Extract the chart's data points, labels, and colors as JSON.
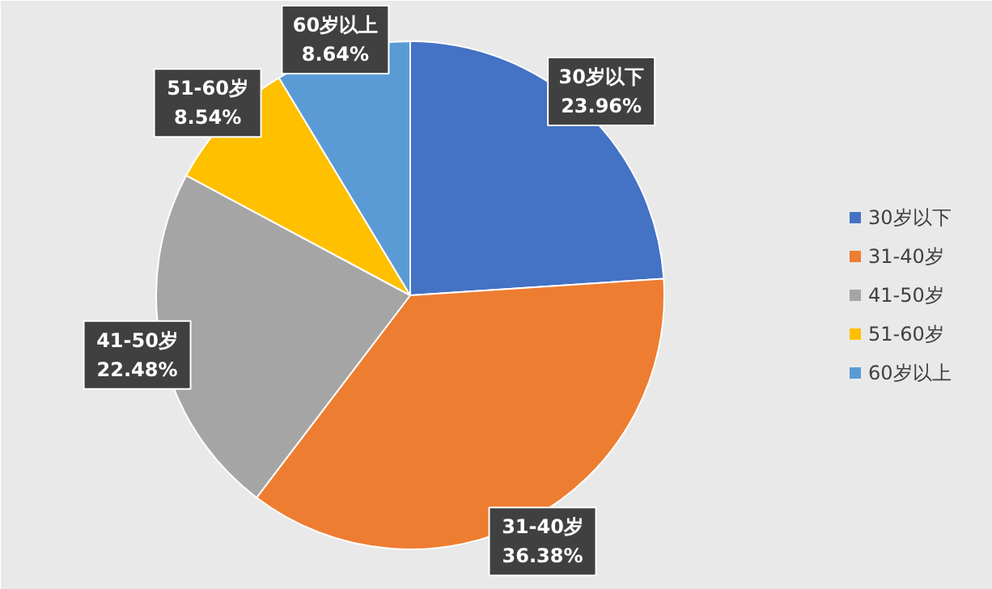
{
  "chart_data": {
    "type": "pie",
    "categories": [
      "30岁以下",
      "31-40岁",
      "41-50岁",
      "51-60岁",
      "60岁以上"
    ],
    "values": [
      23.96,
      36.38,
      22.48,
      8.54,
      8.64
    ],
    "value_labels": [
      "23.96%",
      "36.38%",
      "22.48%",
      "8.54%",
      "8.64%"
    ],
    "colors": [
      "#4472c4",
      "#ed7d31",
      "#a5a5a5",
      "#ffc000",
      "#5b9bd5"
    ],
    "legend": "right"
  }
}
